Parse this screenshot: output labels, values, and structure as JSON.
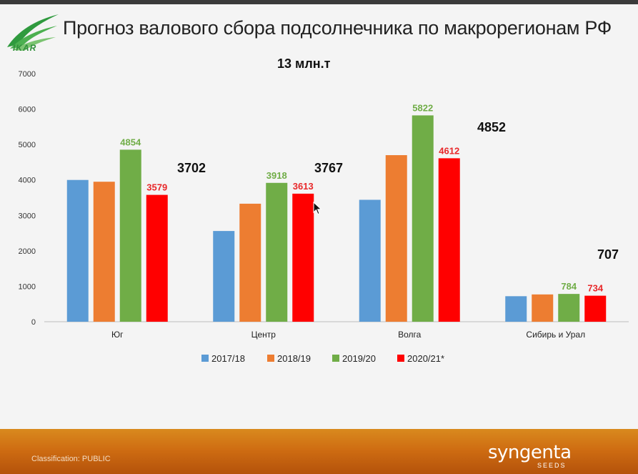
{
  "slide": {
    "title": "Прогноз валового сбора подсолнечника по макрорегионам РФ",
    "logo_text": "IKAR",
    "total_annotation": "13 млн.т",
    "footer": {
      "classification": "Classification: PUBLIC",
      "brand": "syngenta",
      "brand_sub": "SEEDS"
    }
  },
  "colors": {
    "2017/18": "#5b9bd5",
    "2018/19": "#ed7d31",
    "2019/20": "#70ad47",
    "2020/21*": "#ff0000",
    "label_2019/20": "#70ad47",
    "label_2020/21*": "#e8282a"
  },
  "chart_data": {
    "type": "bar",
    "categories": [
      "Юг",
      "Центр",
      "Волга",
      "Сибирь и Урал"
    ],
    "series": [
      {
        "name": "2017/18",
        "values": [
          4000,
          2560,
          3440,
          720
        ]
      },
      {
        "name": "2018/19",
        "values": [
          3950,
          3330,
          4700,
          770
        ]
      },
      {
        "name": "2019/20",
        "values": [
          4854,
          3918,
          5822,
          784
        ]
      },
      {
        "name": "2020/21*",
        "values": [
          3579,
          3613,
          4612,
          734
        ]
      }
    ],
    "data_labels": {
      "2019/20": [
        "4854",
        "3918",
        "5822",
        "784"
      ],
      "2020/21*": [
        "3579",
        "3613",
        "4612",
        "734"
      ]
    },
    "annotations": [
      "3702",
      "3767",
      "4852",
      "707"
    ],
    "ylim": [
      0,
      7000
    ],
    "yticks": [
      "0",
      "1000",
      "2000",
      "3000",
      "4000",
      "5000",
      "6000",
      "7000"
    ],
    "grid": false,
    "legend": "bottom"
  }
}
